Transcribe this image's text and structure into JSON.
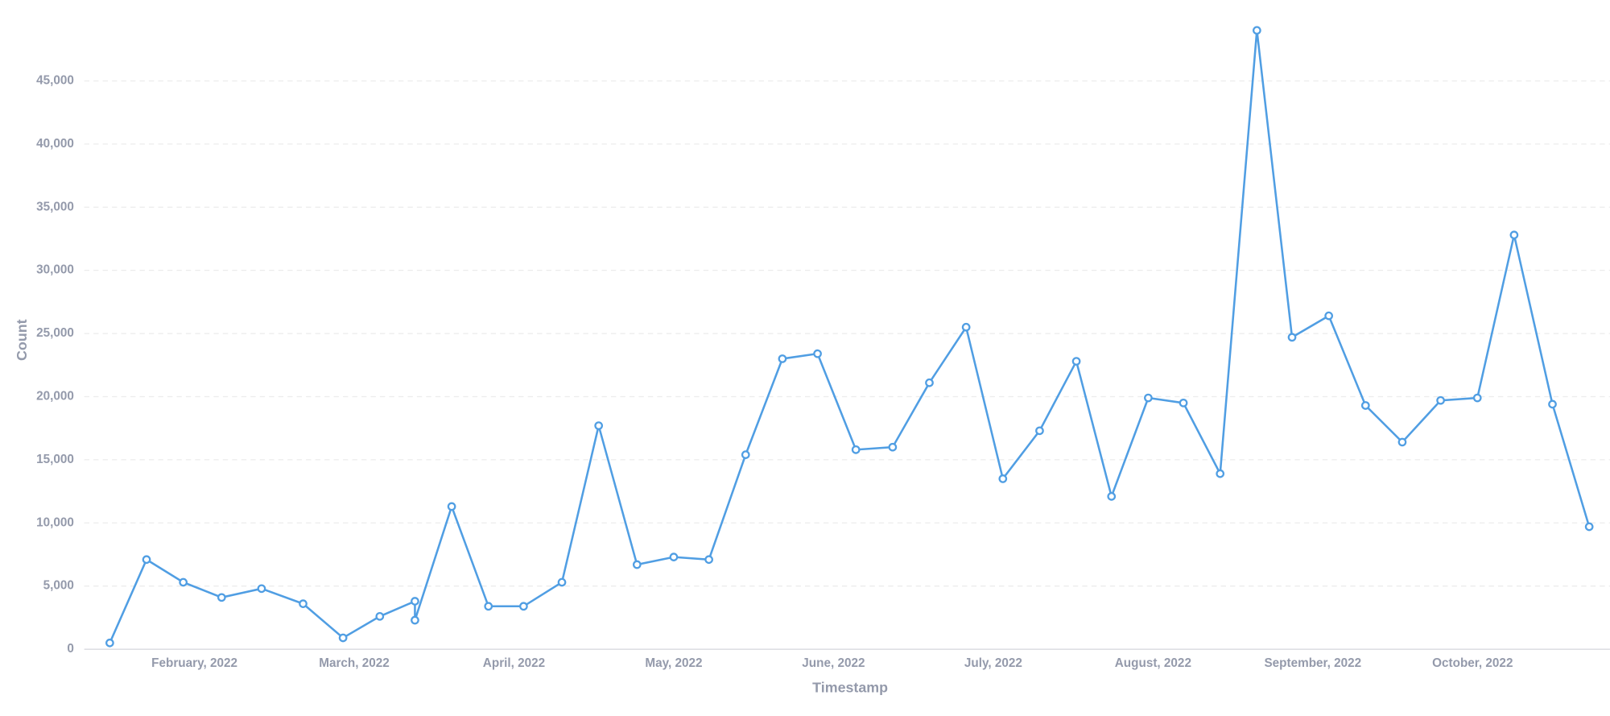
{
  "chart_data": {
    "type": "line",
    "x_label": "Timestamp",
    "y_label": "Count",
    "color": "#509ee3",
    "grid": true,
    "x": [
      0.47,
      0.7,
      0.93,
      1.17,
      1.42,
      1.68,
      1.93,
      2.16,
      2.38,
      2.38,
      2.61,
      2.84,
      3.06,
      3.3,
      3.53,
      3.77,
      4.0,
      4.22,
      4.45,
      4.68,
      4.9,
      5.14,
      5.37,
      5.6,
      5.83,
      6.06,
      6.29,
      6.52,
      6.74,
      6.97,
      7.19,
      7.42,
      7.65,
      7.87,
      8.1,
      8.33,
      8.56,
      8.8,
      9.03,
      9.26,
      9.5,
      9.73
    ],
    "values": [
      500,
      7100,
      5300,
      4100,
      4800,
      3600,
      900,
      2600,
      3800,
      2300,
      11300,
      3400,
      3400,
      5300,
      17700,
      6700,
      7300,
      7100,
      15400,
      23000,
      23400,
      15800,
      16000,
      21100,
      25500,
      13500,
      17300,
      22800,
      12100,
      19900,
      19500,
      13900,
      49000,
      24700,
      26400,
      19300,
      16400,
      19700,
      19900,
      32800,
      19400,
      9700
    ],
    "xlim": [
      0.31,
      9.86
    ],
    "xticks": [
      {
        "value": 1,
        "label": "February, 2022"
      },
      {
        "value": 2,
        "label": "March, 2022"
      },
      {
        "value": 3,
        "label": "April, 2022"
      },
      {
        "value": 4,
        "label": "May, 2022"
      },
      {
        "value": 5,
        "label": "June, 2022"
      },
      {
        "value": 6,
        "label": "July, 2022"
      },
      {
        "value": 7,
        "label": "August, 2022"
      },
      {
        "value": 8,
        "label": "September, 2022"
      },
      {
        "value": 9,
        "label": "October, 2022"
      }
    ],
    "ylim": [
      0,
      51000
    ],
    "yticks": [
      0,
      {
        "value": 5000,
        "label": "5,000"
      },
      {
        "value": 10000,
        "label": "10,000"
      },
      {
        "value": 15000,
        "label": "15,000"
      },
      {
        "value": 20000,
        "label": "20,000"
      },
      {
        "value": 25000,
        "label": "25,000"
      },
      {
        "value": 30000,
        "label": "30,000"
      },
      {
        "value": 35000,
        "label": "35,000"
      },
      {
        "value": 40000,
        "label": "40,000"
      },
      {
        "value": 45000,
        "label": "45,000"
      }
    ]
  }
}
